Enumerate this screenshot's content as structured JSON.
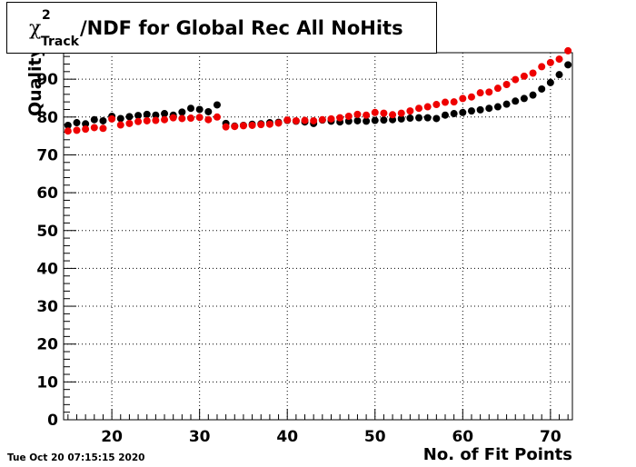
{
  "title": {
    "chi": "χ",
    "superscript": "2",
    "subscript": "Track",
    "main": "/NDF for Global Rec All NoHits"
  },
  "date_stamp": "Tue Oct 20 07:15:15 2020",
  "colors": {
    "series_a": "#000000",
    "series_b": "#ee0000",
    "grid": "#000000"
  },
  "chart_data": {
    "type": "scatter",
    "title": "χ²Track/NDF for Global Rec All NoHits",
    "xlabel": "No. of Fit Points",
    "ylabel": "Quality",
    "xlim": [
      14.5,
      72.5
    ],
    "ylim": [
      0,
      97
    ],
    "grid": true,
    "x_ticks": [
      20,
      30,
      40,
      50,
      60,
      70
    ],
    "y_ticks": [
      0,
      10,
      20,
      30,
      40,
      50,
      60,
      70,
      80,
      90
    ],
    "series": [
      {
        "color": "#000000",
        "x": [
          15,
          16,
          17,
          18,
          19,
          20,
          21,
          22,
          23,
          24,
          25,
          26,
          27,
          28,
          29,
          30,
          31,
          32,
          33,
          34,
          35,
          36,
          37,
          38,
          39,
          40,
          41,
          42,
          43,
          44,
          45,
          46,
          47,
          48,
          49,
          50,
          51,
          52,
          53,
          54,
          55,
          56,
          57,
          58,
          59,
          60,
          61,
          62,
          63,
          64,
          65,
          66,
          67,
          68,
          69,
          70,
          71,
          72
        ],
        "y": [
          77.8,
          78.5,
          78.2,
          79.3,
          79.0,
          80.2,
          79.6,
          80.1,
          80.4,
          80.7,
          80.5,
          80.9,
          80.5,
          81.3,
          82.3,
          82.0,
          81.4,
          83.2,
          78.3,
          77.6,
          77.8,
          78.1,
          78.2,
          78.5,
          78.6,
          79.1,
          78.9,
          78.7,
          78.3,
          79.2,
          78.9,
          78.7,
          78.9,
          79.0,
          78.9,
          79.1,
          79.2,
          79.3,
          79.5,
          79.7,
          79.8,
          79.8,
          79.6,
          80.5,
          80.9,
          81.2,
          81.6,
          81.9,
          82.3,
          82.7,
          83.4,
          84.2,
          84.9,
          85.8,
          87.4,
          89.1,
          91.2,
          93.8
        ]
      },
      {
        "color": "#ee0000",
        "x": [
          15,
          16,
          17,
          18,
          19,
          20,
          21,
          22,
          23,
          24,
          25,
          26,
          27,
          28,
          29,
          30,
          31,
          32,
          33,
          34,
          35,
          36,
          37,
          38,
          39,
          40,
          41,
          42,
          43,
          44,
          45,
          46,
          47,
          48,
          49,
          50,
          51,
          52,
          53,
          54,
          55,
          56,
          57,
          58,
          59,
          60,
          61,
          62,
          63,
          64,
          65,
          66,
          67,
          68,
          69,
          70,
          71,
          72
        ],
        "y": [
          76.3,
          76.5,
          76.8,
          77.2,
          77.0,
          79.5,
          77.9,
          78.3,
          78.8,
          79.0,
          79.1,
          79.3,
          79.8,
          79.6,
          79.7,
          79.9,
          79.3,
          80.0,
          77.4,
          77.5,
          77.7,
          77.8,
          78.0,
          78.1,
          78.4,
          79.2,
          79.0,
          79.1,
          79.0,
          79.3,
          79.5,
          79.8,
          80.2,
          80.7,
          80.5,
          81.2,
          81.0,
          80.6,
          81.0,
          81.6,
          82.3,
          82.7,
          83.3,
          83.9,
          84.0,
          84.9,
          85.3,
          86.4,
          86.6,
          87.6,
          88.6,
          89.9,
          90.8,
          91.6,
          93.3,
          94.4,
          95.3,
          97.5
        ]
      }
    ]
  }
}
